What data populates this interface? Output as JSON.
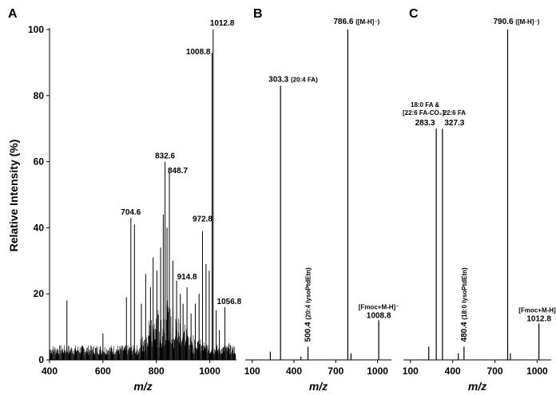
{
  "figure": {
    "ylabel": "Relative Intensity (%)",
    "xlabel": "m/z"
  },
  "chart_data": [
    {
      "type": "bar",
      "panel": "A",
      "xlim": [
        400,
        1100
      ],
      "ylim": [
        0,
        100
      ],
      "x_ticks": [
        400,
        600,
        800,
        1000
      ],
      "y_ticks": [
        0,
        20,
        40,
        60,
        80,
        100
      ],
      "xlabel": "m/z",
      "ylabel": "Relative Intensity (%)",
      "peaks": [
        {
          "x": 465,
          "y": 18
        },
        {
          "x": 600,
          "y": 8
        },
        {
          "x": 688,
          "y": 19
        },
        {
          "x": 704.6,
          "y": 43
        },
        {
          "x": 718,
          "y": 41
        },
        {
          "x": 744,
          "y": 17
        },
        {
          "x": 760,
          "y": 26
        },
        {
          "x": 778,
          "y": 22
        },
        {
          "x": 788,
          "y": 31
        },
        {
          "x": 802,
          "y": 27
        },
        {
          "x": 816,
          "y": 34
        },
        {
          "x": 826,
          "y": 44
        },
        {
          "x": 832.6,
          "y": 60
        },
        {
          "x": 840,
          "y": 40
        },
        {
          "x": 848.7,
          "y": 57
        },
        {
          "x": 862,
          "y": 30
        },
        {
          "x": 876,
          "y": 24
        },
        {
          "x": 890,
          "y": 20
        },
        {
          "x": 900,
          "y": 17
        },
        {
          "x": 914.8,
          "y": 22
        },
        {
          "x": 930,
          "y": 14
        },
        {
          "x": 946,
          "y": 17
        },
        {
          "x": 960,
          "y": 20
        },
        {
          "x": 972.8,
          "y": 39
        },
        {
          "x": 986,
          "y": 29
        },
        {
          "x": 998,
          "y": 27
        },
        {
          "x": 1008.8,
          "y": 93
        },
        {
          "x": 1012.8,
          "y": 100
        },
        {
          "x": 1024,
          "y": 15
        },
        {
          "x": 1036,
          "y": 9
        },
        {
          "x": 1056.8,
          "y": 16
        },
        {
          "x": 1072,
          "y": 5
        },
        {
          "x": 1086,
          "y": 3
        }
      ],
      "labels": [
        {
          "text": "704.6",
          "x": 704.6,
          "y": 43
        },
        {
          "text": "832.6",
          "x": 832.6,
          "y": 60
        },
        {
          "text": "848.7",
          "x": 848.7,
          "y": 57
        },
        {
          "text": "914.8",
          "x": 914.8,
          "y": 22
        },
        {
          "text": "972.8",
          "x": 972.8,
          "y": 39
        },
        {
          "text": "1008.8",
          "x": 1008.8,
          "y": 93
        },
        {
          "text": "1012.8",
          "x": 1012.8,
          "y": 100
        },
        {
          "text": "1056.8",
          "x": 1056.8,
          "y": 16
        }
      ]
    },
    {
      "type": "bar",
      "panel": "B",
      "xlim": [
        50,
        1100
      ],
      "ylim": [
        0,
        100
      ],
      "x_ticks": [
        100,
        400,
        700,
        1000
      ],
      "xlabel": "m/z",
      "peaks": [
        {
          "x": 230,
          "y": 2.5
        },
        {
          "x": 303.3,
          "y": 83
        },
        {
          "x": 450,
          "y": 1
        },
        {
          "x": 500.4,
          "y": 4
        },
        {
          "x": 786.6,
          "y": 100
        },
        {
          "x": 810,
          "y": 2
        },
        {
          "x": 1008.8,
          "y": 12
        }
      ],
      "labels": [
        {
          "text": "303.3",
          "sub": "(20:4 FA)",
          "x": 303.3,
          "y": 83
        },
        {
          "text": "786.6",
          "sub": "([M-H]⁻)",
          "x": 786.6,
          "y": 100
        },
        {
          "text": "500.4",
          "sub": "(20:4 lysoPtdEtn)",
          "x": 500.4,
          "y": 4,
          "rotated": true
        },
        {
          "text": "1008.8",
          "sub": "[Fmoc+M-H]⁻",
          "x": 1008.8,
          "y": 12
        }
      ]
    },
    {
      "type": "bar",
      "panel": "C",
      "xlim": [
        50,
        1100
      ],
      "ylim": [
        0,
        100
      ],
      "x_ticks": [
        100,
        400,
        700,
        1000
      ],
      "xlabel": "m/z",
      "peaks": [
        {
          "x": 230,
          "y": 4
        },
        {
          "x": 283.3,
          "y": 70
        },
        {
          "x": 327.3,
          "y": 70
        },
        {
          "x": 440,
          "y": 2
        },
        {
          "x": 480.4,
          "y": 4
        },
        {
          "x": 790.6,
          "y": 100
        },
        {
          "x": 810,
          "y": 2
        },
        {
          "x": 1012.8,
          "y": 11
        }
      ],
      "labels": [
        {
          "text": "283.3",
          "sub": "18:0 FA &",
          "sub2": "[22:6 FA-CO₂]⁻",
          "x": 283.3,
          "y": 70
        },
        {
          "text": "327.3",
          "sub": "22:6 FA",
          "x": 327.3,
          "y": 70
        },
        {
          "text": "790.6",
          "sub": "([M-H]⁻)",
          "x": 790.6,
          "y": 100
        },
        {
          "text": "480.4",
          "sub": "(18:0 lysoPtdEtn)",
          "x": 480.4,
          "y": 4,
          "rotated": true
        },
        {
          "text": "1012.8",
          "sub": "[Fmoc+M-H]⁻",
          "x": 1012.8,
          "y": 11
        }
      ]
    }
  ]
}
